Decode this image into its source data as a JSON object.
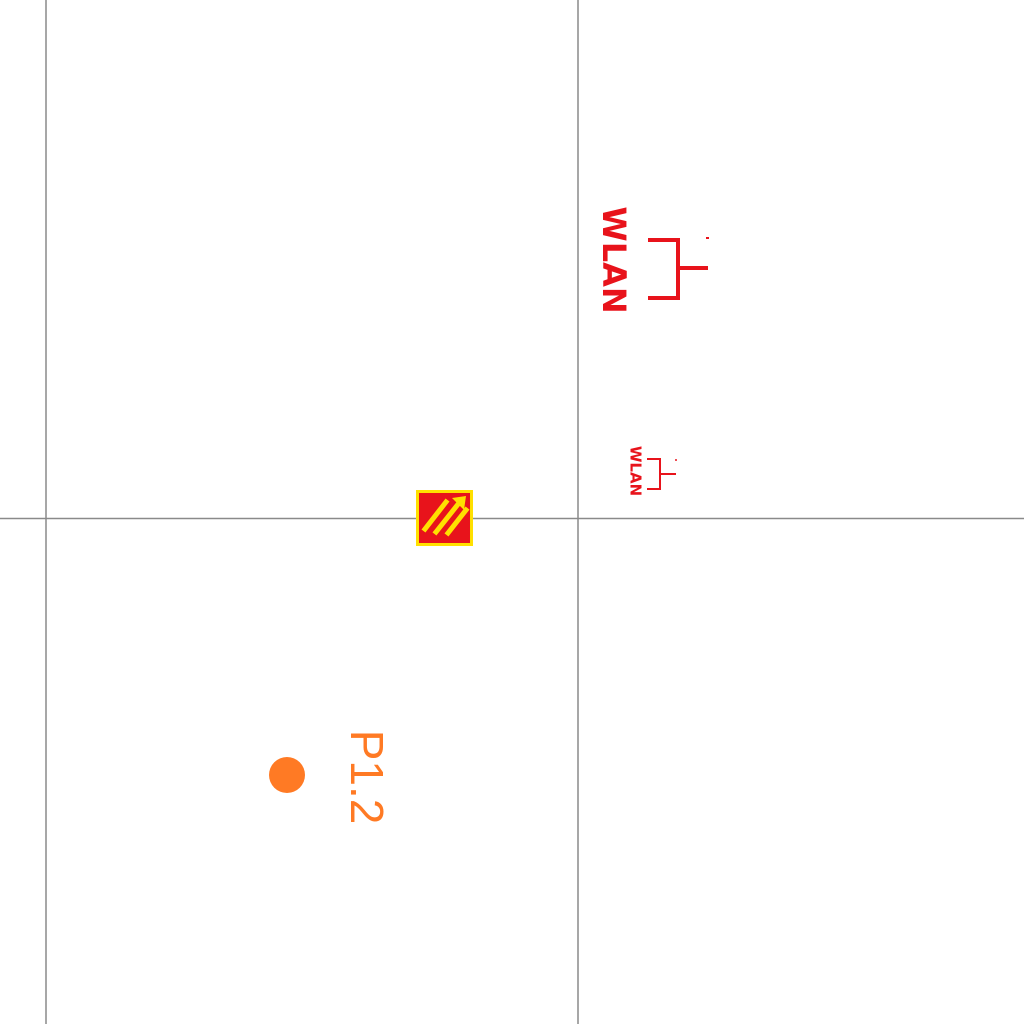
{
  "colors": {
    "grid": "#8a8a8a",
    "wlan": "#e8131b",
    "point": "#ff7a24",
    "marker_fill": "#e8131b",
    "marker_border": "#ffe000"
  },
  "icons": {
    "access_point_large": "wlan-access-point-icon",
    "access_point_small": "wlan-access-point-icon",
    "marker": "striped-hazard-marker-icon",
    "point": "filled-circle-icon"
  },
  "labels": {
    "wlan_large": "WLAN",
    "wlan_small": "WLAN",
    "point": "P1.2"
  }
}
